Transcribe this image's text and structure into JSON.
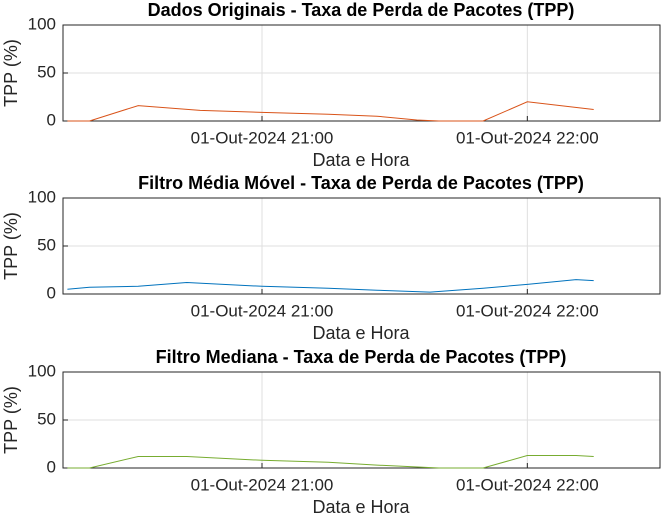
{
  "chart_data": [
    {
      "type": "line",
      "title": "Dados Originais - Taxa de Perda de Pacotes (TPP)",
      "xlabel": "Data e Hora",
      "ylabel": "TPP (%)",
      "x": [
        "01-Out-2024 20:16",
        "01-Out-2024 20:21",
        "01-Out-2024 20:32",
        "01-Out-2024 20:46",
        "01-Out-2024 21:00",
        "01-Out-2024 21:15",
        "01-Out-2024 21:26",
        "01-Out-2024 21:35",
        "01-Out-2024 21:40",
        "01-Out-2024 21:50",
        "01-Out-2024 22:00",
        "01-Out-2024 22:15"
      ],
      "values": [
        0,
        0,
        16,
        11,
        9,
        7,
        5,
        1,
        0,
        0,
        20,
        12
      ],
      "color": "#d95319",
      "xlim": [
        "01-Out-2024 20:15",
        "01-Out-2024 22:30"
      ],
      "xticks": [
        "01-Out-2024 21:00",
        "01-Out-2024 22:00"
      ],
      "ylim": [
        0,
        100
      ],
      "yticks": [
        0,
        50,
        100
      ],
      "grid": true
    },
    {
      "type": "line",
      "title": "Filtro Média Móvel - Taxa de Perda de Pacotes (TPP)",
      "xlabel": "Data e Hora",
      "ylabel": "TPP (%)",
      "x": [
        "01-Out-2024 20:16",
        "01-Out-2024 20:21",
        "01-Out-2024 20:32",
        "01-Out-2024 20:43",
        "01-Out-2024 21:00",
        "01-Out-2024 21:15",
        "01-Out-2024 21:26",
        "01-Out-2024 21:38",
        "01-Out-2024 21:50",
        "01-Out-2024 22:00",
        "01-Out-2024 22:11",
        "01-Out-2024 22:15"
      ],
      "values": [
        5,
        7,
        8,
        12,
        8,
        6,
        4,
        2,
        6,
        10,
        15,
        14
      ],
      "color": "#0072bd",
      "xlim": [
        "01-Out-2024 20:15",
        "01-Out-2024 22:30"
      ],
      "xticks": [
        "01-Out-2024 21:00",
        "01-Out-2024 22:00"
      ],
      "ylim": [
        0,
        100
      ],
      "yticks": [
        0,
        50,
        100
      ],
      "grid": true
    },
    {
      "type": "line",
      "title": "Filtro Mediana - Taxa de Perda de Pacotes (TPP)",
      "xlabel": "Data e Hora",
      "ylabel": "TPP (%)",
      "x": [
        "01-Out-2024 20:16",
        "01-Out-2024 20:21",
        "01-Out-2024 20:32",
        "01-Out-2024 20:43",
        "01-Out-2024 21:00",
        "01-Out-2024 21:15",
        "01-Out-2024 21:26",
        "01-Out-2024 21:40",
        "01-Out-2024 21:50",
        "01-Out-2024 22:00",
        "01-Out-2024 22:11",
        "01-Out-2024 22:15"
      ],
      "values": [
        0,
        0,
        12,
        12,
        8,
        6,
        3,
        0,
        0,
        13,
        13,
        12
      ],
      "color": "#77ac30",
      "xlim": [
        "01-Out-2024 20:15",
        "01-Out-2024 22:30"
      ],
      "xticks": [
        "01-Out-2024 21:00",
        "01-Out-2024 22:00"
      ],
      "ylim": [
        0,
        100
      ],
      "yticks": [
        0,
        50,
        100
      ],
      "grid": true
    }
  ]
}
